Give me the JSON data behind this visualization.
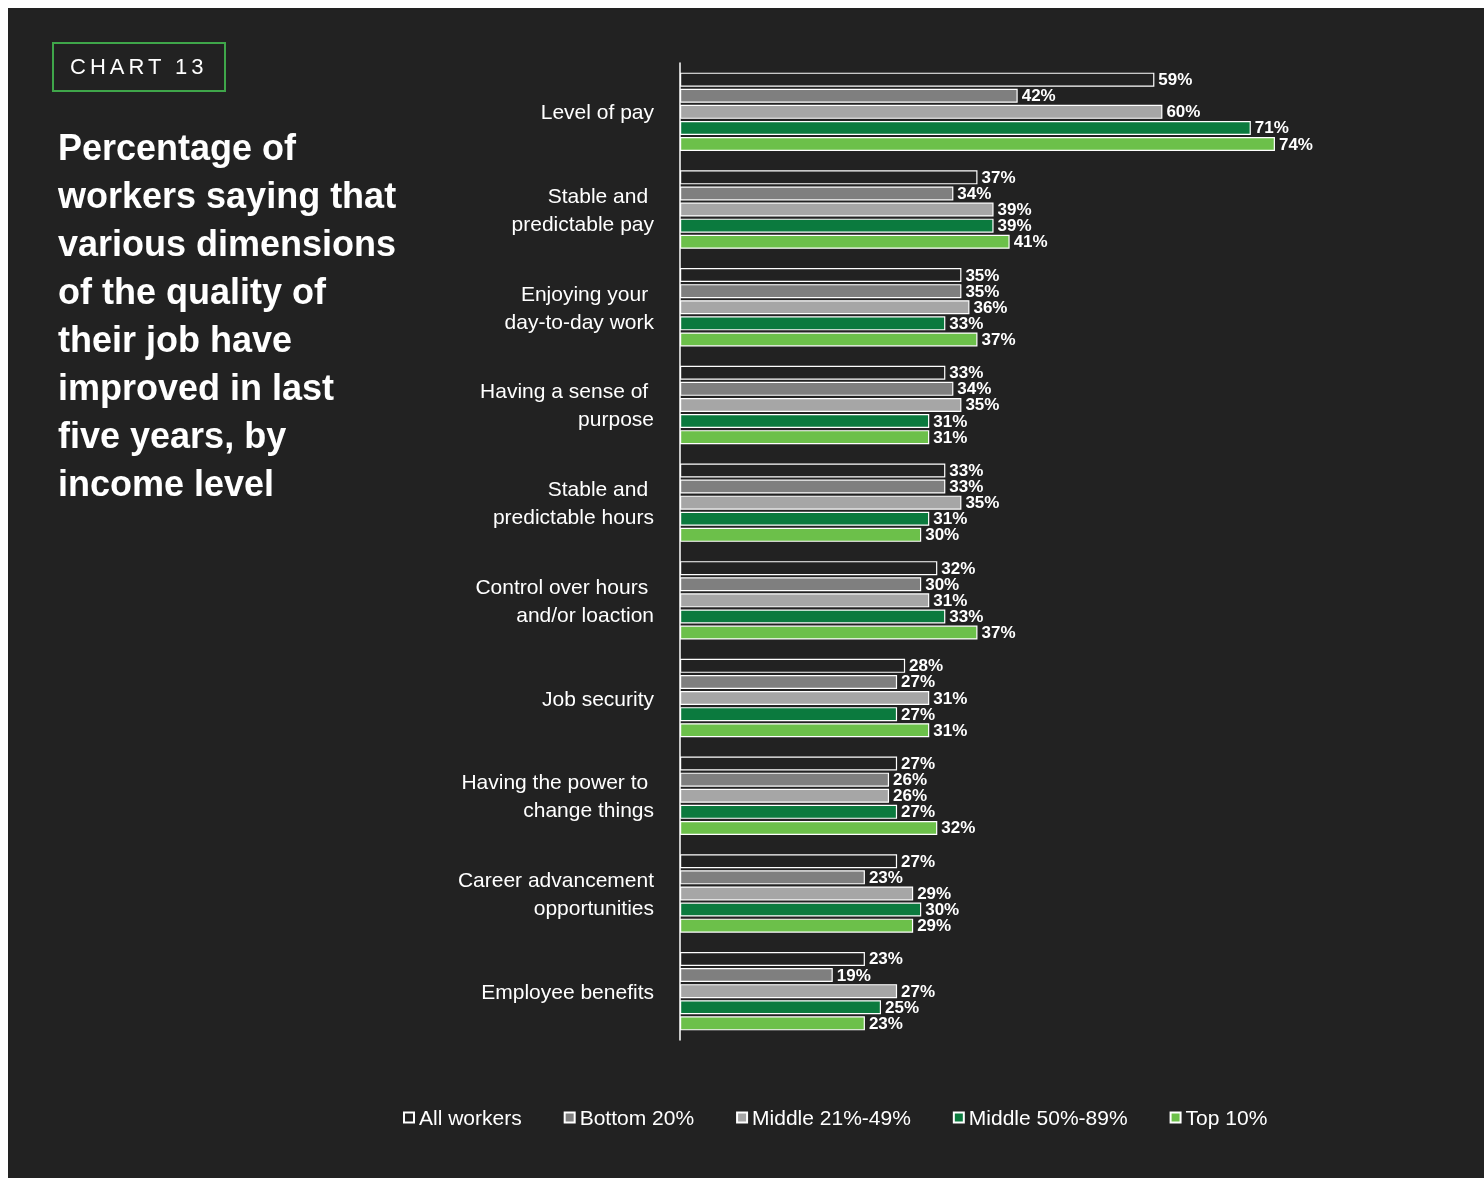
{
  "chart_data": {
    "type": "bar",
    "orientation": "horizontal",
    "title": "Percentage of workers saying that various dimensions of the quality of their job have improved in last five years, by income level",
    "annotations": [
      "CHART 13"
    ],
    "categories": [
      "Level of pay",
      "Stable and predictable pay",
      "Enjoying your day-to-day work",
      "Having a sense of purpose",
      "Stable and predictable hours",
      "Control over hours and/or loaction",
      "Job security",
      "Having the power to change things",
      "Career advancement opportunities",
      "Employee benefits"
    ],
    "xlim": [
      0,
      100
    ],
    "tick_labels": "y",
    "legend": "bottom",
    "grid": false,
    "series": [
      {
        "name": "All workers",
        "color": "#222222",
        "values": [
          59,
          37,
          35,
          33,
          33,
          32,
          28,
          27,
          27,
          23
        ],
        "value_labels": [
          "59%",
          "37%",
          "35%",
          "33%",
          "33%",
          "32%",
          "28%",
          "27%",
          "27%",
          "23%"
        ]
      },
      {
        "name": "Bottom 20%",
        "color": "#7f7f7f",
        "values": [
          42,
          34,
          35,
          34,
          33,
          30,
          27,
          26,
          23,
          19
        ],
        "value_labels": [
          "42%",
          "34%",
          "35%",
          "34%",
          "33%",
          "30%",
          "27%",
          "26%",
          "23%",
          "19%"
        ]
      },
      {
        "name": "Middle 21%-49%",
        "color": "#a6a6a6",
        "values": [
          60,
          39,
          36,
          35,
          35,
          31,
          31,
          26,
          29,
          27
        ],
        "value_labels": [
          "60%",
          "39%",
          "36%",
          "35%",
          "35%",
          "31%",
          "31%",
          "26%",
          "29%",
          "27%"
        ]
      },
      {
        "name": "Middle 50%-89%",
        "color": "#0b7a3e",
        "values": [
          71,
          39,
          33,
          31,
          31,
          33,
          27,
          27,
          30,
          25
        ],
        "value_labels": [
          "71%",
          "39%",
          "33%",
          "31%",
          "31%",
          "33%",
          "27%",
          "27%",
          "30%",
          "25%"
        ]
      },
      {
        "name": "Top 10%",
        "color": "#6cc04a",
        "values": [
          74,
          41,
          37,
          31,
          30,
          37,
          31,
          32,
          29,
          23
        ],
        "value_labels": [
          "74%",
          "41%",
          "37%",
          "31%",
          "30%",
          "37%",
          "31%",
          "32%",
          "29%",
          "23%"
        ]
      }
    ]
  }
}
